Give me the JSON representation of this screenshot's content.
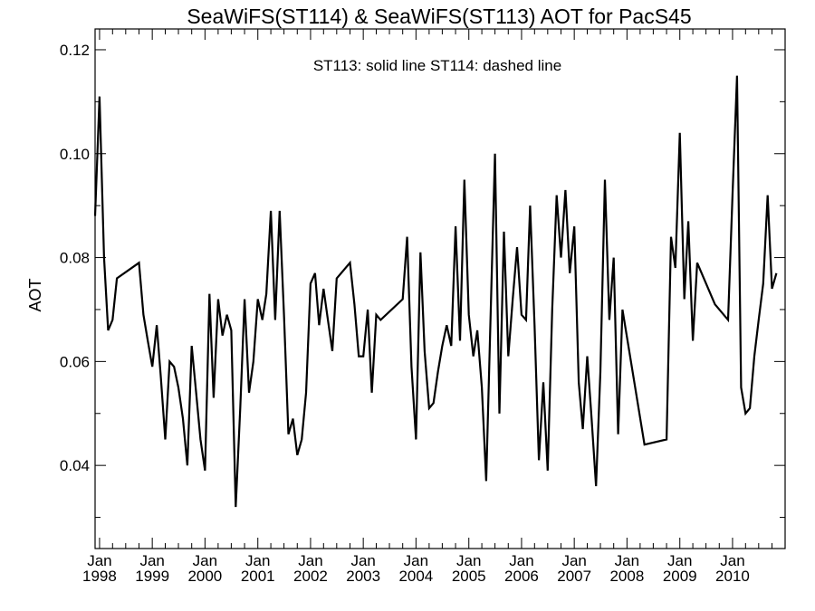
{
  "chart_data": {
    "type": "line",
    "title": "SeaWiFS(ST114) & SeaWiFS(ST113)  AOT for PacS45",
    "annotation": "ST113: solid line   ST114: dashed line",
    "xlabel": "",
    "ylabel": "AOT",
    "xlim": [
      "1997-12-01",
      "2010-12-31"
    ],
    "ylim": [
      0.024,
      0.124
    ],
    "grid": false,
    "y_ticks": [
      {
        "value": 0.04,
        "label": "0.04"
      },
      {
        "value": 0.06,
        "label": "0.06"
      },
      {
        "value": 0.08,
        "label": "0.08"
      },
      {
        "value": 0.1,
        "label": "0.10"
      },
      {
        "value": 0.12,
        "label": "0.12"
      }
    ],
    "x_ticks": [
      {
        "date": "1998-01-01",
        "month": "Jan",
        "year": "1998"
      },
      {
        "date": "1999-01-01",
        "month": "Jan",
        "year": "1999"
      },
      {
        "date": "2000-01-01",
        "month": "Jan",
        "year": "2000"
      },
      {
        "date": "2001-01-01",
        "month": "Jan",
        "year": "2001"
      },
      {
        "date": "2002-01-01",
        "month": "Jan",
        "year": "2002"
      },
      {
        "date": "2003-01-01",
        "month": "Jan",
        "year": "2003"
      },
      {
        "date": "2004-01-01",
        "month": "Jan",
        "year": "2004"
      },
      {
        "date": "2005-01-01",
        "month": "Jan",
        "year": "2005"
      },
      {
        "date": "2006-01-01",
        "month": "Jan",
        "year": "2006"
      },
      {
        "date": "2007-01-01",
        "month": "Jan",
        "year": "2007"
      },
      {
        "date": "2008-01-01",
        "month": "Jan",
        "year": "2008"
      },
      {
        "date": "2009-01-01",
        "month": "Jan",
        "year": "2009"
      },
      {
        "date": "2010-01-01",
        "month": "Jan",
        "year": "2010"
      }
    ],
    "series": [
      {
        "name": "ST113",
        "style": "solid",
        "color": "#000000",
        "points": [
          [
            "1997-12-01",
            0.088
          ],
          [
            "1998-01-01",
            0.111
          ],
          [
            "1998-02-01",
            0.08
          ],
          [
            "1998-03-01",
            0.066
          ],
          [
            "1998-04-01",
            0.068
          ],
          [
            "1998-05-01",
            0.076
          ],
          [
            "1998-10-01",
            0.079
          ],
          [
            "1998-11-01",
            0.069
          ],
          [
            "1998-12-01",
            0.064
          ],
          [
            "1999-01-01",
            0.059
          ],
          [
            "1999-02-01",
            0.067
          ],
          [
            "1999-03-01",
            0.057
          ],
          [
            "1999-04-01",
            0.045
          ],
          [
            "1999-05-01",
            0.06
          ],
          [
            "1999-06-01",
            0.059
          ],
          [
            "1999-07-01",
            0.055
          ],
          [
            "1999-08-01",
            0.049
          ],
          [
            "1999-09-01",
            0.04
          ],
          [
            "1999-10-01",
            0.063
          ],
          [
            "1999-11-01",
            0.054
          ],
          [
            "1999-12-01",
            0.045
          ],
          [
            "2000-01-01",
            0.039
          ],
          [
            "2000-02-01",
            0.073
          ],
          [
            "2000-03-01",
            0.053
          ],
          [
            "2000-04-01",
            0.072
          ],
          [
            "2000-05-01",
            0.065
          ],
          [
            "2000-06-01",
            0.069
          ],
          [
            "2000-07-01",
            0.066
          ],
          [
            "2000-08-01",
            0.032
          ],
          [
            "2000-09-01",
            0.051
          ],
          [
            "2000-10-01",
            0.072
          ],
          [
            "2000-11-01",
            0.054
          ],
          [
            "2000-12-01",
            0.06
          ],
          [
            "2001-01-01",
            0.072
          ],
          [
            "2001-02-01",
            0.068
          ],
          [
            "2001-03-01",
            0.073
          ],
          [
            "2001-04-01",
            0.089
          ],
          [
            "2001-05-01",
            0.068
          ],
          [
            "2001-06-01",
            0.089
          ],
          [
            "2001-07-01",
            0.069
          ],
          [
            "2001-08-01",
            0.046
          ],
          [
            "2001-09-01",
            0.049
          ],
          [
            "2001-10-01",
            0.042
          ],
          [
            "2001-11-01",
            0.045
          ],
          [
            "2001-12-01",
            0.054
          ],
          [
            "2002-01-01",
            0.075
          ],
          [
            "2002-02-01",
            0.077
          ],
          [
            "2002-03-01",
            0.067
          ],
          [
            "2002-04-01",
            0.074
          ],
          [
            "2002-05-01",
            0.068
          ],
          [
            "2002-06-01",
            0.062
          ],
          [
            "2002-07-01",
            0.076
          ],
          [
            "2002-10-01",
            0.079
          ],
          [
            "2002-11-01",
            0.071
          ],
          [
            "2002-12-01",
            0.061
          ],
          [
            "2003-01-01",
            0.061
          ],
          [
            "2003-02-01",
            0.07
          ],
          [
            "2003-03-01",
            0.054
          ],
          [
            "2003-04-01",
            0.069
          ],
          [
            "2003-05-01",
            0.068
          ],
          [
            "2003-10-01",
            0.072
          ],
          [
            "2003-11-01",
            0.084
          ],
          [
            "2003-12-01",
            0.059
          ],
          [
            "2004-01-01",
            0.045
          ],
          [
            "2004-02-01",
            0.081
          ],
          [
            "2004-03-01",
            0.062
          ],
          [
            "2004-04-01",
            0.051
          ],
          [
            "2004-05-01",
            0.052
          ],
          [
            "2004-06-01",
            0.058
          ],
          [
            "2004-07-01",
            0.063
          ],
          [
            "2004-08-01",
            0.067
          ],
          [
            "2004-09-01",
            0.063
          ],
          [
            "2004-10-01",
            0.086
          ],
          [
            "2004-11-01",
            0.064
          ],
          [
            "2004-12-01",
            0.095
          ],
          [
            "2005-01-01",
            0.069
          ],
          [
            "2005-02-01",
            0.061
          ],
          [
            "2005-03-01",
            0.066
          ],
          [
            "2005-04-01",
            0.055
          ],
          [
            "2005-05-01",
            0.037
          ],
          [
            "2005-06-01",
            0.069
          ],
          [
            "2005-07-01",
            0.1
          ],
          [
            "2005-08-01",
            0.05
          ],
          [
            "2005-09-01",
            0.085
          ],
          [
            "2005-10-01",
            0.061
          ],
          [
            "2005-11-01",
            0.072
          ],
          [
            "2005-12-01",
            0.082
          ],
          [
            "2006-01-01",
            0.069
          ],
          [
            "2006-02-01",
            0.068
          ],
          [
            "2006-03-01",
            0.09
          ],
          [
            "2006-04-01",
            0.067
          ],
          [
            "2006-05-01",
            0.041
          ],
          [
            "2006-06-01",
            0.056
          ],
          [
            "2006-07-01",
            0.039
          ],
          [
            "2006-08-01",
            0.07
          ],
          [
            "2006-09-01",
            0.092
          ],
          [
            "2006-10-01",
            0.08
          ],
          [
            "2006-11-01",
            0.093
          ],
          [
            "2006-12-01",
            0.077
          ],
          [
            "2007-01-01",
            0.086
          ],
          [
            "2007-02-01",
            0.056
          ],
          [
            "2007-03-01",
            0.047
          ],
          [
            "2007-04-01",
            0.061
          ],
          [
            "2007-05-01",
            0.049
          ],
          [
            "2007-06-01",
            0.036
          ],
          [
            "2007-07-01",
            0.058
          ],
          [
            "2007-08-01",
            0.095
          ],
          [
            "2007-09-01",
            0.068
          ],
          [
            "2007-10-01",
            0.08
          ],
          [
            "2007-11-01",
            0.046
          ],
          [
            "2007-12-01",
            0.07
          ],
          [
            "2008-05-01",
            0.044
          ],
          [
            "2008-10-01",
            0.045
          ],
          [
            "2008-11-01",
            0.084
          ],
          [
            "2008-12-01",
            0.078
          ],
          [
            "2009-01-01",
            0.104
          ],
          [
            "2009-02-01",
            0.072
          ],
          [
            "2009-03-01",
            0.087
          ],
          [
            "2009-04-01",
            0.064
          ],
          [
            "2009-05-01",
            0.079
          ],
          [
            "2009-09-01",
            0.071
          ],
          [
            "2009-12-01",
            0.068
          ],
          [
            "2010-01-01",
            0.092
          ],
          [
            "2010-02-01",
            0.115
          ],
          [
            "2010-03-01",
            0.055
          ],
          [
            "2010-04-01",
            0.05
          ],
          [
            "2010-05-01",
            0.051
          ],
          [
            "2010-06-01",
            0.061
          ],
          [
            "2010-07-01",
            0.068
          ],
          [
            "2010-08-01",
            0.075
          ],
          [
            "2010-09-01",
            0.092
          ],
          [
            "2010-10-01",
            0.074
          ],
          [
            "2010-11-01",
            0.077
          ]
        ]
      }
    ]
  }
}
